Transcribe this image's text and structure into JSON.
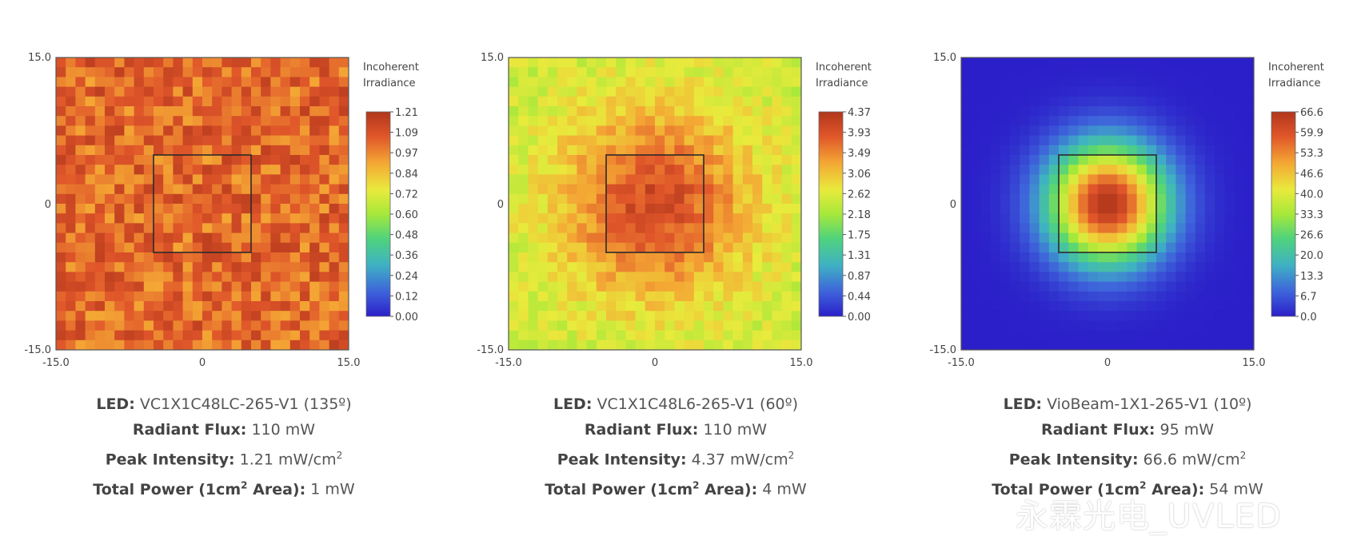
{
  "chart_data": [
    {
      "type": "heatmap",
      "title": "",
      "colorbar_title_line1": "Incoherent",
      "colorbar_title_line2": "Irradiance",
      "xlim": [
        -15.0,
        15.0
      ],
      "ylim": [
        -15.0,
        15.0
      ],
      "x_ticks": [
        "-15.0",
        "0",
        "15.0"
      ],
      "y_ticks": [
        "15.0",
        "0",
        "-15.0"
      ],
      "colorbar_ticks": [
        "1.21",
        "1.09",
        "0.97",
        "0.84",
        "0.72",
        "0.60",
        "0.48",
        "0.36",
        "0.24",
        "0.12",
        "0.00"
      ],
      "vmin": 0.0,
      "vmax": 1.21,
      "distribution": "near-uniform",
      "base_level": 1.05,
      "noise": 0.13,
      "center_box": [
        -5,
        5,
        -5,
        5
      ],
      "led_label": "LED:",
      "led_value": "VC1X1C48LC-265-V1 (135º)",
      "flux_label": "Radiant Flux:",
      "flux_value": "110 mW",
      "peak_label": "Peak Intensity:",
      "peak_value": "1.21 mW/cm",
      "peak_sup": "2",
      "power_label_a": "Total Power (1cm",
      "power_label_sup": "2",
      "power_label_b": " Area):",
      "power_value": "1 mW"
    },
    {
      "type": "heatmap",
      "title": "",
      "colorbar_title_line1": "Incoherent",
      "colorbar_title_line2": "Irradiance",
      "xlim": [
        -15.0,
        15.0
      ],
      "ylim": [
        -15.0,
        15.0
      ],
      "x_ticks": [
        "-15.0",
        "0",
        "15.0"
      ],
      "y_ticks": [
        "15.0",
        "0",
        "-15.0"
      ],
      "colorbar_ticks": [
        "4.37",
        "3.93",
        "3.49",
        "3.06",
        "2.62",
        "2.18",
        "1.75",
        "1.31",
        "0.87",
        "0.44",
        "0.00"
      ],
      "vmin": 0.0,
      "vmax": 4.37,
      "distribution": "wide-gaussian",
      "edge_level": 2.45,
      "peak_level": 4.0,
      "sigma_mm": 7.0,
      "noise": 0.28,
      "center_box": [
        -5,
        5,
        -5,
        5
      ],
      "led_label": "LED:",
      "led_value": "VC1X1C48L6-265-V1 (60º)",
      "flux_label": "Radiant Flux:",
      "flux_value": "110 mW",
      "peak_label": "Peak Intensity:",
      "peak_value": "4.37 mW/cm",
      "peak_sup": "2",
      "power_label_a": "Total Power (1cm",
      "power_label_sup": "2",
      "power_label_b": " Area):",
      "power_value": "4 mW"
    },
    {
      "type": "heatmap",
      "title": "",
      "colorbar_title_line1": "Incoherent",
      "colorbar_title_line2": "Irradiance",
      "xlim": [
        -15.0,
        15.0
      ],
      "ylim": [
        -15.0,
        15.0
      ],
      "x_ticks": [
        "-15.0",
        "0",
        "15.0"
      ],
      "y_ticks": [
        "15.0",
        "0",
        "-15.0"
      ],
      "colorbar_ticks": [
        "66.6",
        "59.9",
        "53.3",
        "46.6",
        "40.0",
        "33.3",
        "26.6",
        "20.0",
        "13.3",
        "6.7",
        "0.0"
      ],
      "vmin": 0.0,
      "vmax": 66.6,
      "distribution": "narrow-gaussian",
      "edge_level": 0.0,
      "peak_level": 66.6,
      "sigma_mm": 4.2,
      "noise": 0.0,
      "center_box": [
        -5,
        5,
        -5,
        5
      ],
      "led_label": "LED:",
      "led_value": "VioBeam-1X1-265-V1 (10º)",
      "flux_label": "Radiant Flux:",
      "flux_value": "95 mW",
      "peak_label": "Peak Intensity:",
      "peak_value": "66.6 mW/cm",
      "peak_sup": "2",
      "power_label_a": "Total Power (1cm",
      "power_label_sup": "2",
      "power_label_b": " Area):",
      "power_value": "54 mW"
    }
  ],
  "watermark": "永霖光电_UVLED"
}
